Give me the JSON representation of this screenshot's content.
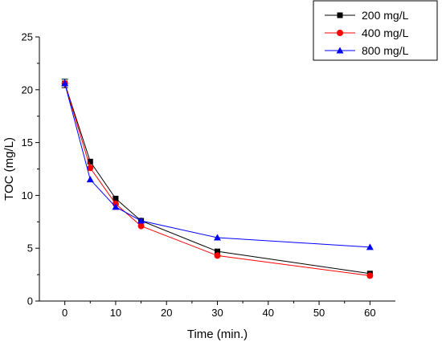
{
  "chart_data": {
    "type": "line",
    "xlabel": "Time (min.)",
    "ylabel": "TOC (mg/L)",
    "xlim": [
      -5,
      65
    ],
    "ylim": [
      0,
      25
    ],
    "xticks": [
      0,
      10,
      20,
      30,
      40,
      50,
      60
    ],
    "yticks": [
      0,
      5,
      10,
      15,
      20,
      25
    ],
    "grid": false,
    "legend": "top-right",
    "x": [
      0,
      5,
      10,
      15,
      30,
      60
    ],
    "series": [
      {
        "name": "200 mg/L",
        "color": "#000000",
        "marker": "square",
        "values": [
          20.6,
          13.2,
          9.7,
          7.6,
          4.7,
          2.6
        ]
      },
      {
        "name": "400 mg/L",
        "color": "#ff0000",
        "marker": "circle",
        "values": [
          20.6,
          12.6,
          9.2,
          7.1,
          4.3,
          2.4
        ]
      },
      {
        "name": "800 mg/L",
        "color": "#0000ff",
        "marker": "triangle",
        "values": [
          20.6,
          11.5,
          8.9,
          7.6,
          6.0,
          5.1
        ]
      }
    ],
    "error_bars": {
      "x": 0,
      "y": 20.6,
      "low": 20.2,
      "high": 21.0
    }
  }
}
